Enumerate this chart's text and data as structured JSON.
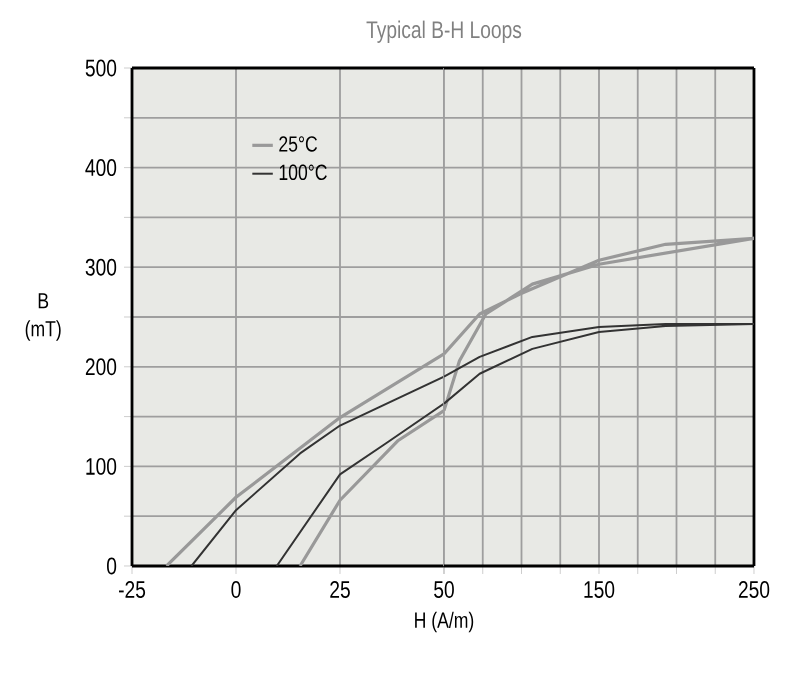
{
  "chart_data": [
    {
      "type": "line",
      "title": "Typical B-H Loops",
      "xlabel": "H (A/m)",
      "ylabel": "B (mT)",
      "xlim": [
        -25,
        50
      ],
      "ylim": [
        0,
        500
      ],
      "xticks": [
        -25,
        0,
        25,
        50
      ],
      "yticks": [
        0,
        {
          "value": 50,
          "label": null
        },
        100,
        {
          "value": 150,
          "label": null
        },
        200,
        {
          "value": 250,
          "label": null
        },
        300,
        {
          "value": 350,
          "label": null
        },
        400,
        {
          "value": 450,
          "label": null
        },
        500
      ],
      "grid": true,
      "legend": "top left",
      "line_style": "solid",
      "series": [
        {
          "name": "25°C",
          "color": "#999999",
          "x": [
            -16.7,
            0,
            25,
            50
          ],
          "values": [
            0,
            69,
            149,
            213
          ]
        },
        {
          "name": "100°C",
          "color": "#333333",
          "x": [
            -10.7,
            0,
            15.4,
            25,
            50
          ],
          "values": [
            0,
            56,
            113,
            141,
            190
          ]
        },
        {
          "color": "#999999",
          "x": [
            50,
            39,
            25,
            15.4
          ],
          "values": [
            156,
            126,
            66,
            0
          ]
        },
        {
          "color": "#333333",
          "x": [
            50,
            36,
            25,
            9.8
          ],
          "values": [
            163,
            123,
            92,
            0
          ]
        }
      ]
    },
    {
      "type": "line",
      "xlim": [
        50,
        250
      ],
      "ylim": [
        0,
        500
      ],
      "tick_labels": "x",
      "xticks": [
        {
          "value": 50,
          "label": null
        },
        {
          "value": 75,
          "label": null
        },
        {
          "value": 100,
          "label": null
        },
        {
          "value": 125,
          "label": null
        },
        150,
        {
          "value": 175,
          "label": null
        },
        {
          "value": 200,
          "label": null
        },
        {
          "value": 225,
          "label": null
        },
        250
      ],
      "yticks": [
        0,
        {
          "value": 50,
          "label": null
        },
        100,
        {
          "value": 150,
          "label": null
        },
        200,
        {
          "value": 250,
          "label": null
        },
        300,
        {
          "value": 350,
          "label": null
        },
        400,
        {
          "value": 450,
          "label": null
        },
        500
      ],
      "grid": true,
      "line_style": "solid",
      "series": [
        {
          "color": "#999999",
          "x": [
            50,
            73,
            99,
            150,
            193,
            250,
            150,
            107,
            77,
            60,
            50
          ],
          "values": [
            213,
            253,
            273,
            307,
            323,
            329,
            303,
            283,
            253,
            206,
            156
          ]
        },
        {
          "color": "#333333",
          "x": [
            50,
            73,
            107,
            150,
            193,
            250,
            193,
            150,
            107,
            73,
            50
          ],
          "values": [
            190,
            210,
            230,
            240,
            243,
            243,
            241,
            235,
            218,
            193,
            163
          ]
        }
      ]
    }
  ]
}
